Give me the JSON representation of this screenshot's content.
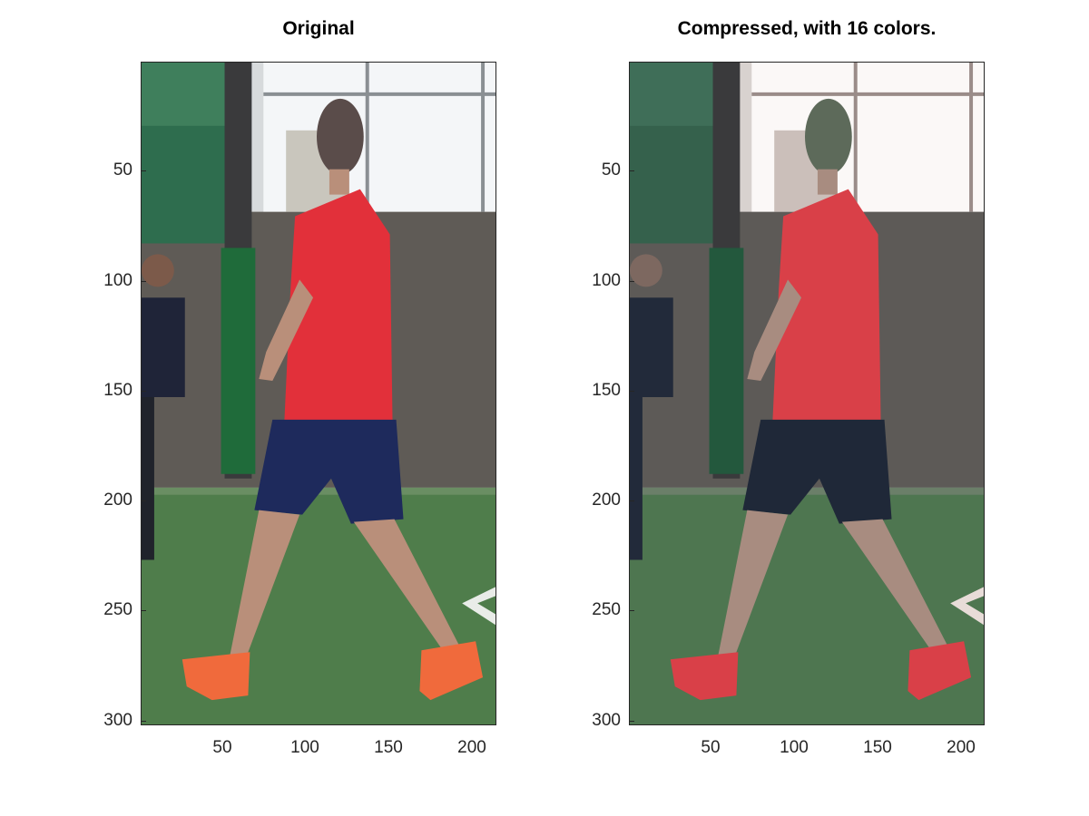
{
  "panels": [
    {
      "title": "Original",
      "image": "photo of a young man in a red t-shirt, navy shorts and orange sneakers walking on an indoor turf field; another player in a dark shirt at left edge",
      "y_ticks": [
        "50",
        "100",
        "150",
        "200",
        "250",
        "300"
      ],
      "x_ticks": [
        "50",
        "100",
        "150",
        "200"
      ]
    },
    {
      "title": "Compressed, with 16 colors.",
      "image": "same photo color-quantized to 16 colors",
      "y_ticks": [
        "50",
        "100",
        "150",
        "200",
        "250",
        "300"
      ],
      "x_ticks": [
        "50",
        "100",
        "150",
        "200"
      ]
    }
  ],
  "colors": {
    "turf": "#4d7a4a",
    "wall": "#5e5a55",
    "pillar": "#1f6b3a",
    "shirt": "#e2303a",
    "shorts": "#1e2a5c",
    "shoes": "#f06a3c",
    "skin": "#b98f7a",
    "window": "#f3f5f7"
  }
}
